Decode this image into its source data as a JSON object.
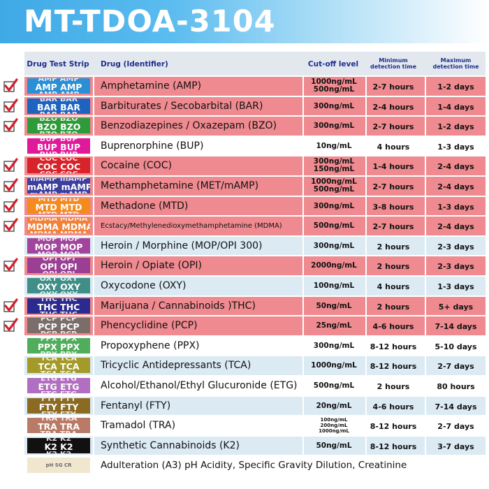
{
  "title": "MT-TDOA-3104",
  "headers": {
    "strip": "Drug Test Strip",
    "drug": "Drug (Identifier)",
    "cutoff": "Cut-off level",
    "min": "Minimum detection time",
    "max": "Maximum detection time"
  },
  "rows": [
    {
      "checked": true,
      "row_color": "pink",
      "strip_code": "AMP",
      "strip_color": "#2a8fd4",
      "drug": "Amphetamine (AMP)",
      "cutoff": "1000ng/mL 500ng/mL",
      "min": "2-7 hours",
      "max": "1-2 days"
    },
    {
      "checked": true,
      "row_color": "pink",
      "strip_code": "BAR",
      "strip_color": "#1f63c1",
      "drug": "Barbiturates / Secobarbital (BAR)",
      "cutoff": "300ng/mL",
      "min": "2-4 hours",
      "max": "1-4 days"
    },
    {
      "checked": true,
      "row_color": "pink",
      "strip_code": "BZO",
      "strip_color": "#2e9b3a",
      "drug": "Benzodiazepines / Oxazepam (BZO)",
      "cutoff": "300ng/mL",
      "min": "2-7 hours",
      "max": "1-2 days"
    },
    {
      "checked": false,
      "row_color": "white",
      "strip_code": "BUP",
      "strip_color": "#e0199a",
      "drug": "Buprenorphine (BUP)",
      "cutoff": "10ng/mL",
      "min": "4 hours",
      "max": "1-3 days"
    },
    {
      "checked": true,
      "row_color": "pink",
      "strip_code": "COC",
      "strip_color": "#d8232a",
      "drug": "Cocaine (COC)",
      "cutoff": "300ng/mL 150ng/mL",
      "min": "1-4 hours",
      "max": "2-4 days"
    },
    {
      "checked": true,
      "row_color": "pink",
      "strip_code": "mAMP",
      "strip_color": "#3b3f9e",
      "drug": "Methamphetamine (MET/mAMP)",
      "cutoff": "1000ng/mL 500ng/mL",
      "min": "2-7 hours",
      "max": "2-4 days"
    },
    {
      "checked": true,
      "row_color": "pink",
      "strip_code": "MTD",
      "strip_color": "#f38b1f",
      "drug": "Methadone (MTD)",
      "cutoff": "300ng/mL",
      "min": "3-8 hours",
      "max": "1-3 days"
    },
    {
      "checked": true,
      "row_color": "pink",
      "strip_code": "MDMA",
      "strip_color": "#f0823a",
      "drug": "Ecstacy/Methylenedioxymethamphetamine (MDMA)",
      "cutoff": "500ng/mL",
      "min": "2-7 hours",
      "max": "2-4 days"
    },
    {
      "checked": false,
      "row_color": "blue",
      "strip_code": "MOP",
      "strip_color": "#a2449c",
      "drug": "Heroin / Morphine (MOP/OPI 300)",
      "cutoff": "300ng/mL",
      "min": "2 hours",
      "max": "2-3 days"
    },
    {
      "checked": true,
      "row_color": "pink",
      "strip_code": "OPI",
      "strip_color": "#9b3f94",
      "drug": "Heroin / Opiate (OPI)",
      "cutoff": "2000ng/mL",
      "min": "2 hours",
      "max": "2-3 days"
    },
    {
      "checked": false,
      "row_color": "blue",
      "strip_code": "OXY",
      "strip_color": "#3f8f88",
      "drug": "Oxycodone (OXY)",
      "cutoff": "100ng/mL",
      "min": "4 hours",
      "max": "1-3 days"
    },
    {
      "checked": true,
      "row_color": "pink",
      "strip_code": "THC",
      "strip_color": "#2b2a8e",
      "drug": "Marijuana / Cannabinoids )THC)",
      "cutoff": "50ng/mL",
      "min": "2 hours",
      "max": "5+ days"
    },
    {
      "checked": true,
      "row_color": "pink",
      "strip_code": "PCP",
      "strip_color": "#7b6e6a",
      "drug": "Phencyclidine (PCP)",
      "cutoff": "25ng/mL",
      "min": "4-6 hours",
      "max": "7-14 days"
    },
    {
      "checked": false,
      "row_color": "white",
      "strip_code": "PPX",
      "strip_color": "#4fad5b",
      "drug": "Propoxyphene (PPX)",
      "cutoff": "300ng/mL",
      "min": "8-12 hours",
      "max": "5-10 days"
    },
    {
      "checked": false,
      "row_color": "blue",
      "strip_code": "TCA",
      "strip_color": "#a39a2a",
      "drug": "Tricyclic Antidepressants (TCA)",
      "cutoff": "1000ng/mL",
      "min": "8-12 hours",
      "max": "2-7 days"
    },
    {
      "checked": false,
      "row_color": "white",
      "strip_code": "ETG",
      "strip_color": "#b06fc0",
      "drug": "Alcohol/Ethanol/Ethyl Glucuronide (ETG)",
      "cutoff": "500ng/mL",
      "min": "2 hours",
      "max": "80 hours"
    },
    {
      "checked": false,
      "row_color": "blue",
      "strip_code": "FTY",
      "strip_color": "#8c6a22",
      "drug": "Fentanyl (FTY)",
      "cutoff": "20ng/mL",
      "min": "4-6 hours",
      "max": "7-14 days"
    },
    {
      "checked": false,
      "row_color": "white",
      "strip_code": "TRA",
      "strip_color": "#b97a67",
      "drug": "Tramadol (TRA)",
      "cutoff": "100ng/mL 200ng/mL 1000ng/mL",
      "min": "8-12 hours",
      "max": "2-7 days"
    },
    {
      "checked": false,
      "row_color": "blue",
      "strip_code": "K2",
      "strip_color": "#111111",
      "drug": "Synthetic Cannabinoids (K2)",
      "cutoff": "50ng/mL",
      "min": "8-12 hours",
      "max": "3-7 days"
    }
  ],
  "adulteration": {
    "strip_text": "pH SG CR",
    "text": "Adulteration (A3) pH Acidity, Specific Gravity Dilution, Creatinine"
  },
  "colors": {
    "check": "#d4202a",
    "header_text": "#1d2f8e",
    "pink_row": "#ee8a90",
    "blue_row": "#dbeaf3"
  }
}
